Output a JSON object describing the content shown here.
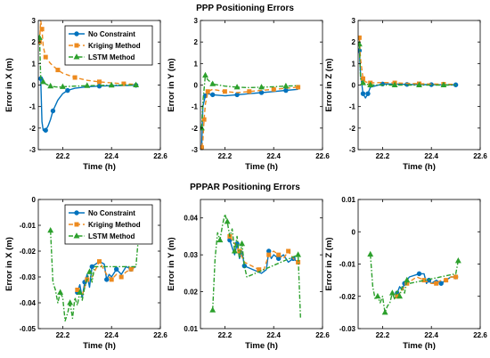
{
  "figure": {
    "top_title": "PPP Positioning Errors",
    "bottom_title": "PPPAR Positioning Errors"
  },
  "chart_data": [
    {
      "type": "line",
      "panel": "PPP X",
      "xlabel": "Time (h)",
      "ylabel": "Error in X (m)",
      "xlim": [
        22.1,
        22.6
      ],
      "ylim": [
        -3,
        3
      ],
      "xticks": [
        "22.2",
        "22.4",
        "22.6"
      ],
      "yticks": [
        "-3",
        "-2",
        "-1",
        "0",
        "1",
        "2",
        "3"
      ],
      "grid": false,
      "legend": {
        "placement": "top-right",
        "entries": [
          "No Constraint",
          "Kriging Method",
          "LSTM Method"
        ]
      },
      "series": [
        {
          "name": "No Constraint",
          "color": "#0072BD",
          "style": "solid",
          "marker": "circle",
          "x": [
            22.11,
            22.115,
            22.12,
            22.13,
            22.14,
            22.15,
            22.16,
            22.18,
            22.2,
            22.22,
            22.25,
            22.3,
            22.35,
            22.4,
            22.45,
            22.5
          ],
          "y": [
            0.3,
            -1.7,
            -2.1,
            -2.1,
            -1.9,
            -1.6,
            -1.2,
            -0.7,
            -0.4,
            -0.25,
            -0.15,
            -0.08,
            -0.05,
            -0.03,
            -0.02,
            -0.01
          ]
        },
        {
          "name": "Kriging Method",
          "color": "#ED8A1E",
          "style": "dashed",
          "marker": "square",
          "x": [
            22.105,
            22.11,
            22.115,
            22.12,
            22.13,
            22.15,
            22.18,
            22.2,
            22.25,
            22.3,
            22.35,
            22.4,
            22.45,
            22.5
          ],
          "y": [
            2.0,
            3.0,
            2.6,
            1.8,
            1.3,
            1.0,
            0.7,
            0.55,
            0.35,
            0.22,
            0.15,
            0.1,
            0.06,
            0.03
          ]
        },
        {
          "name": "LSTM Method",
          "color": "#2CA02C",
          "style": "dashdot",
          "marker": "triangle",
          "x": [
            22.105,
            22.11,
            22.12,
            22.13,
            22.15,
            22.18,
            22.2,
            22.25,
            22.3,
            22.35,
            22.4,
            22.45,
            22.5
          ],
          "y": [
            2.2,
            0.35,
            0.15,
            0.05,
            -0.05,
            -0.1,
            -0.08,
            -0.05,
            -0.03,
            -0.02,
            -0.01,
            0.0,
            0.0
          ]
        }
      ]
    },
    {
      "type": "line",
      "panel": "PPP Y",
      "xlabel": "Time (h)",
      "ylabel": "Error in Y (m)",
      "xlim": [
        22.1,
        22.6
      ],
      "ylim": [
        -3,
        3
      ],
      "xticks": [
        "22.2",
        "22.4",
        "22.6"
      ],
      "yticks": [
        "-3",
        "-2",
        "-1",
        "0",
        "1",
        "2",
        "3"
      ],
      "grid": false,
      "series": [
        {
          "name": "No Constraint",
          "color": "#0072BD",
          "style": "solid",
          "marker": "circle",
          "x": [
            22.105,
            22.11,
            22.12,
            22.13,
            22.15,
            22.2,
            22.25,
            22.3,
            22.35,
            22.4,
            22.45,
            22.5
          ],
          "y": [
            -2.9,
            -1.0,
            -0.5,
            -0.4,
            -0.45,
            -0.5,
            -0.45,
            -0.4,
            -0.35,
            -0.3,
            -0.25,
            -0.2
          ]
        },
        {
          "name": "Kriging Method",
          "color": "#ED8A1E",
          "style": "dashed",
          "marker": "square",
          "x": [
            22.105,
            22.11,
            22.115,
            22.12,
            22.13,
            22.15,
            22.2,
            22.25,
            22.3,
            22.35,
            22.4,
            22.45,
            22.5
          ],
          "y": [
            -2.9,
            -2.6,
            -1.6,
            -0.9,
            -0.3,
            -0.2,
            -0.3,
            -0.35,
            -0.3,
            -0.25,
            -0.2,
            -0.15,
            -0.1
          ]
        },
        {
          "name": "LSTM Method",
          "color": "#2CA02C",
          "style": "dashdot",
          "marker": "triangle",
          "x": [
            22.105,
            22.11,
            22.12,
            22.13,
            22.15,
            22.2,
            22.25,
            22.3,
            22.35,
            22.4,
            22.45,
            22.5
          ],
          "y": [
            -2.0,
            -0.8,
            0.45,
            0.25,
            0.05,
            -0.05,
            -0.1,
            -0.12,
            -0.1,
            -0.08,
            -0.05,
            -0.03
          ]
        }
      ]
    },
    {
      "type": "line",
      "panel": "PPP Z",
      "xlabel": "Time (h)",
      "ylabel": "Error in Z (m)",
      "xlim": [
        22.1,
        22.6
      ],
      "ylim": [
        -3,
        3
      ],
      "xticks": [
        "22.2",
        "22.4",
        "22.6"
      ],
      "yticks": [
        "-3",
        "-2",
        "-1",
        "0",
        "1",
        "2",
        "3"
      ],
      "grid": false,
      "series": [
        {
          "name": "No Constraint",
          "color": "#0072BD",
          "style": "solid",
          "marker": "circle",
          "x": [
            22.105,
            22.11,
            22.12,
            22.13,
            22.14,
            22.15,
            22.2,
            22.25,
            22.3,
            22.35,
            22.4,
            22.45,
            22.5
          ],
          "y": [
            1.6,
            0.5,
            -0.4,
            -0.6,
            -0.4,
            -0.1,
            0.05,
            0.05,
            0.03,
            0.02,
            0.02,
            0.01,
            0.01
          ]
        },
        {
          "name": "Kriging Method",
          "color": "#ED8A1E",
          "style": "dashed",
          "marker": "square",
          "x": [
            22.105,
            22.11,
            22.12,
            22.13,
            22.15,
            22.2,
            22.25,
            22.3,
            22.35,
            22.4,
            22.45,
            22.5
          ],
          "y": [
            2.2,
            1.2,
            0.3,
            0.15,
            0.1,
            0.12,
            0.1,
            0.08,
            0.06,
            0.05,
            0.04,
            0.03
          ]
        },
        {
          "name": "LSTM Method",
          "color": "#2CA02C",
          "style": "dashdot",
          "marker": "triangle",
          "x": [
            22.105,
            22.11,
            22.12,
            22.13,
            22.15,
            22.2,
            22.25,
            22.3,
            22.35,
            22.4,
            22.45,
            22.5
          ],
          "y": [
            1.9,
            0.3,
            0.1,
            0.05,
            0.0,
            0.0,
            0.0,
            0.0,
            0.0,
            0.0,
            0.0,
            0.0
          ]
        }
      ]
    },
    {
      "type": "line",
      "panel": "PPPAR X",
      "xlabel": "Time (h)",
      "ylabel": "Error in X (m)",
      "xlim": [
        22.1,
        22.6
      ],
      "ylim": [
        -0.05,
        0
      ],
      "xticks": [
        "22.2",
        "22.4",
        "22.6"
      ],
      "yticks": [
        "-0.05",
        "-0.04",
        "-0.03",
        "-0.02",
        "-0.01",
        "0"
      ],
      "grid": false,
      "legend": {
        "placement": "top-right",
        "entries": [
          "No Constraint",
          "Kriging Method",
          "LSTM Method"
        ]
      },
      "series": [
        {
          "name": "No Constraint",
          "color": "#0072BD",
          "style": "solid",
          "marker": "circle",
          "x": [
            22.26,
            22.27,
            22.28,
            22.29,
            22.3,
            22.31,
            22.32,
            22.35,
            22.37,
            22.38,
            22.39,
            22.4,
            22.42,
            22.44,
            22.46,
            22.48,
            22.5
          ],
          "y": [
            -0.036,
            -0.033,
            -0.038,
            -0.032,
            -0.029,
            -0.034,
            -0.026,
            -0.024,
            -0.025,
            -0.031,
            -0.029,
            -0.03,
            -0.027,
            -0.029,
            -0.026,
            -0.027,
            -0.026
          ]
        },
        {
          "name": "Kriging Method",
          "color": "#ED8A1E",
          "style": "dashed",
          "marker": "square",
          "x": [
            22.26,
            22.28,
            22.3,
            22.32,
            22.35,
            22.38,
            22.4,
            22.42,
            22.44,
            22.46,
            22.48,
            22.5
          ],
          "y": [
            -0.035,
            -0.037,
            -0.031,
            -0.03,
            -0.024,
            -0.029,
            -0.031,
            -0.029,
            -0.03,
            -0.028,
            -0.027,
            -0.026
          ]
        },
        {
          "name": "LSTM Method",
          "color": "#2CA02C",
          "style": "dashdot",
          "marker": "triangle",
          "x": [
            22.15,
            22.16,
            22.17,
            22.18,
            22.19,
            22.2,
            22.21,
            22.22,
            22.23,
            22.24,
            22.25,
            22.26,
            22.27,
            22.28,
            22.29,
            22.3,
            22.31,
            22.32,
            22.33,
            22.5,
            22.51
          ],
          "y": [
            -0.012,
            -0.032,
            -0.035,
            -0.04,
            -0.036,
            -0.038,
            -0.047,
            -0.044,
            -0.04,
            -0.046,
            -0.038,
            -0.041,
            -0.036,
            -0.039,
            -0.034,
            -0.031,
            -0.028,
            -0.032,
            -0.026,
            -0.026,
            -0.015
          ]
        }
      ]
    },
    {
      "type": "line",
      "panel": "PPPAR Y",
      "xlabel": "Time (h)",
      "ylabel": "Error in Y (m)",
      "xlim": [
        22.1,
        22.6
      ],
      "ylim": [
        0.01,
        0.045
      ],
      "xticks": [
        "22.2",
        "22.4",
        "22.6"
      ],
      "yticks": [
        "0.01",
        "0.02",
        "0.03",
        "0.04"
      ],
      "grid": false,
      "series": [
        {
          "name": "No Constraint",
          "color": "#0072BD",
          "style": "solid",
          "marker": "circle",
          "x": [
            22.22,
            22.23,
            22.24,
            22.25,
            22.26,
            22.27,
            22.28,
            22.35,
            22.37,
            22.38,
            22.39,
            22.4,
            22.42,
            22.44,
            22.46,
            22.48,
            22.5
          ],
          "y": [
            0.034,
            0.032,
            0.03,
            0.033,
            0.029,
            0.031,
            0.027,
            0.025,
            0.026,
            0.031,
            0.029,
            0.03,
            0.029,
            0.03,
            0.028,
            0.029,
            0.028
          ]
        },
        {
          "name": "Kriging Method",
          "color": "#ED8A1E",
          "style": "dashed",
          "marker": "square",
          "x": [
            22.22,
            22.24,
            22.26,
            22.28,
            22.34,
            22.36,
            22.38,
            22.4,
            22.42,
            22.44,
            22.46,
            22.48,
            22.5
          ],
          "y": [
            0.035,
            0.033,
            0.031,
            0.028,
            0.026,
            0.026,
            0.03,
            0.031,
            0.03,
            0.029,
            0.031,
            0.029,
            0.028
          ]
        },
        {
          "name": "LSTM Method",
          "color": "#2CA02C",
          "style": "dashdot",
          "marker": "triangle",
          "x": [
            22.15,
            22.16,
            22.17,
            22.18,
            22.19,
            22.2,
            22.21,
            22.22,
            22.23,
            22.24,
            22.25,
            22.26,
            22.27,
            22.28,
            22.29,
            22.5,
            22.51
          ],
          "y": [
            0.015,
            0.029,
            0.036,
            0.034,
            0.038,
            0.041,
            0.039,
            0.035,
            0.037,
            0.031,
            0.035,
            0.029,
            0.033,
            0.027,
            0.024,
            0.03,
            0.013
          ]
        }
      ]
    },
    {
      "type": "line",
      "panel": "PPPAR Z",
      "xlabel": "Time (h)",
      "ylabel": "Error in Z (m)",
      "xlim": [
        22.1,
        22.6
      ],
      "ylim": [
        -0.03,
        0.01
      ],
      "xticks": [
        "22.2",
        "22.4",
        "22.6"
      ],
      "yticks": [
        "-0.03",
        "-0.02",
        "-0.01",
        "0",
        "0.01"
      ],
      "grid": false,
      "series": [
        {
          "name": "No Constraint",
          "color": "#0072BD",
          "style": "solid",
          "marker": "circle",
          "x": [
            22.26,
            22.27,
            22.28,
            22.29,
            22.3,
            22.31,
            22.35,
            22.37,
            22.38,
            22.39,
            22.4,
            22.42,
            22.44,
            22.46,
            22.48,
            22.5
          ],
          "y": [
            -0.019,
            -0.017,
            -0.018,
            -0.016,
            -0.015,
            -0.014,
            -0.013,
            -0.013,
            -0.016,
            -0.015,
            -0.016,
            -0.015,
            -0.016,
            -0.015,
            -0.014,
            -0.014
          ]
        },
        {
          "name": "Kriging Method",
          "color": "#ED8A1E",
          "style": "dashed",
          "marker": "square",
          "x": [
            22.26,
            22.28,
            22.3,
            22.34,
            22.37,
            22.4,
            22.42,
            22.44,
            22.46,
            22.48,
            22.5
          ],
          "y": [
            -0.02,
            -0.018,
            -0.016,
            -0.014,
            -0.015,
            -0.016,
            -0.016,
            -0.015,
            -0.015,
            -0.014,
            -0.014
          ]
        },
        {
          "name": "LSTM Method",
          "color": "#2CA02C",
          "style": "dashdot",
          "marker": "triangle",
          "x": [
            22.15,
            22.16,
            22.17,
            22.18,
            22.19,
            22.2,
            22.21,
            22.22,
            22.23,
            22.24,
            22.25,
            22.26,
            22.27,
            22.28,
            22.29,
            22.3,
            22.31,
            22.5,
            22.51
          ],
          "y": [
            -0.007,
            -0.017,
            -0.021,
            -0.02,
            -0.022,
            -0.02,
            -0.025,
            -0.023,
            -0.022,
            -0.019,
            -0.021,
            -0.018,
            -0.02,
            -0.017,
            -0.019,
            -0.015,
            -0.016,
            -0.013,
            -0.009
          ]
        }
      ]
    }
  ]
}
